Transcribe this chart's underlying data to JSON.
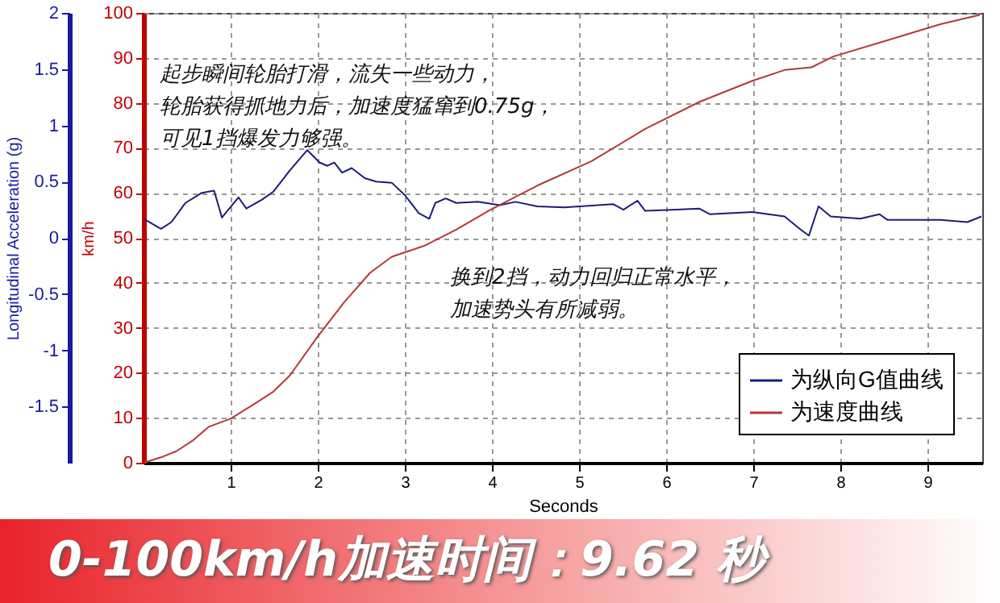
{
  "chart_data": {
    "type": "line",
    "title": "0-100km/h加速时间：9.62 秒",
    "xlabel": "Seconds",
    "ylabel": "Longitudinal Acceleration (g)",
    "y2label": "km/h",
    "xlim": [
      0,
      9.63
    ],
    "xticks": [
      1,
      2,
      3,
      4,
      5,
      6,
      7,
      8,
      9
    ],
    "ylim": [
      -2,
      2
    ],
    "yticks": [
      -1.5,
      -1,
      -0.5,
      0,
      0.5,
      1,
      1.5,
      2
    ],
    "y2lim": [
      0,
      100
    ],
    "y2ticks": [
      0,
      10,
      20,
      30,
      40,
      50,
      60,
      70,
      80,
      90,
      100
    ],
    "grid": true,
    "legend": "bottom right",
    "line_style": "solid",
    "series": [
      {
        "name": "为纵向G值曲线",
        "color": "#1c1c78",
        "axis": "y",
        "x": [
          0,
          0.2,
          0.32,
          0.48,
          0.67,
          0.81,
          0.9,
          1.09,
          1.18,
          1.36,
          1.49,
          1.68,
          1.88,
          2.02,
          2.11,
          2.19,
          2.28,
          2.39,
          2.54,
          2.67,
          2.85,
          3.0,
          3.16,
          3.28,
          3.35,
          3.47,
          3.59,
          3.84,
          4.09,
          4.27,
          4.52,
          4.83,
          5.39,
          5.51,
          5.67,
          5.76,
          6.07,
          6.38,
          6.5,
          6.99,
          7.36,
          7.55,
          7.64,
          7.75,
          7.89,
          8.23,
          8.45,
          8.54,
          9.15,
          9.46,
          9.62
        ],
        "values": [
          0.17,
          0.08,
          0.14,
          0.31,
          0.4,
          0.42,
          0.18,
          0.36,
          0.26,
          0.34,
          0.41,
          0.6,
          0.78,
          0.67,
          0.64,
          0.67,
          0.58,
          0.62,
          0.53,
          0.5,
          0.49,
          0.38,
          0.22,
          0.17,
          0.31,
          0.35,
          0.31,
          0.32,
          0.29,
          0.32,
          0.28,
          0.27,
          0.3,
          0.25,
          0.33,
          0.24,
          0.25,
          0.26,
          0.21,
          0.23,
          0.19,
          0.07,
          0.02,
          0.28,
          0.19,
          0.17,
          0.21,
          0.16,
          0.16,
          0.14,
          0.19
        ]
      },
      {
        "name": "为速度曲线",
        "color": "#b03a3a",
        "axis": "y2",
        "x": [
          0,
          0.2,
          0.38,
          0.57,
          0.75,
          1.0,
          1.25,
          1.49,
          1.68,
          1.99,
          2.3,
          2.6,
          2.85,
          3.22,
          3.59,
          3.96,
          4.52,
          5.14,
          5.76,
          6.38,
          6.99,
          7.36,
          7.67,
          7.92,
          8.54,
          9.15,
          9.59,
          9.62
        ],
        "values": [
          0,
          1.2,
          2.6,
          5,
          8,
          9.8,
          12.8,
          15.8,
          19.4,
          27.8,
          35.6,
          42.2,
          45.8,
          48.2,
          51.8,
          56,
          61.6,
          67,
          74.2,
          80.2,
          84.9,
          87.3,
          87.9,
          90.3,
          93.9,
          97.5,
          99.5,
          100
        ]
      }
    ],
    "annotations": [
      "起步瞬间轮胎打滑，流失一些动力，轮胎获得抓地力后，加速度猛窜到0.75g，可见1挡爆发力够强。",
      "换到2挡，动力回归正常水平，加速势头有所减弱。"
    ]
  }
}
